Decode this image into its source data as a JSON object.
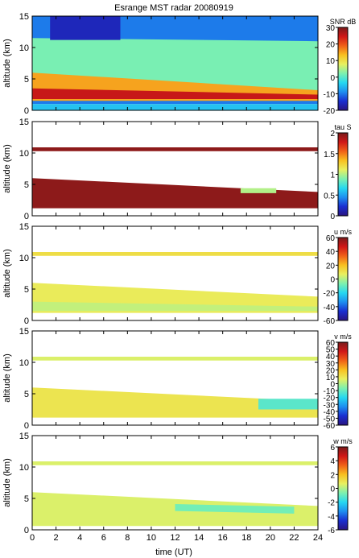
{
  "figure": {
    "title": "Esrange MST radar 20080919",
    "xlabel": "time (UT)",
    "x_ticks": [
      0,
      2,
      4,
      6,
      8,
      10,
      12,
      14,
      16,
      18,
      20,
      22,
      24
    ],
    "xlim": [
      0,
      24
    ]
  },
  "colors": {
    "colormap": [
      "#2a1480",
      "#1a2ed0",
      "#1e8ef0",
      "#26d8f0",
      "#7cf0b0",
      "#e8f060",
      "#f8c020",
      "#f06018",
      "#d01818",
      "#7a1a1a"
    ]
  },
  "chart_data": [
    {
      "type": "heatmap",
      "panel": "snr",
      "ylabel": "altitude (km)",
      "ylim": [
        0,
        15
      ],
      "y_ticks": [
        0,
        5,
        10,
        15
      ],
      "colorbar": {
        "label": "SNR dB",
        "range": [
          -20,
          30
        ],
        "ticks": [
          -20,
          -10,
          0,
          10,
          20,
          30
        ]
      },
      "layers": [
        {
          "from_t": 0,
          "to_t": 24,
          "alt_lo": [
            1.0,
            1.0
          ],
          "alt_hi": [
            15,
            15
          ],
          "value": -10
        },
        {
          "from_t": 0,
          "to_t": 24,
          "alt_lo": [
            5.5,
            1.5
          ],
          "alt_hi": [
            11.5,
            11.0
          ],
          "value": 2
        },
        {
          "from_t": 0,
          "to_t": 24,
          "alt_lo": [
            1.5,
            1.5
          ],
          "alt_hi": [
            6.0,
            3.2
          ],
          "value": 15
        },
        {
          "from_t": 0,
          "to_t": 24,
          "alt_lo": [
            1.8,
            1.8
          ],
          "alt_hi": [
            3.5,
            2.5
          ],
          "value": 25
        },
        {
          "from_t": 0,
          "to_t": 24,
          "alt_lo": [
            0,
            0
          ],
          "alt_hi": [
            1.0,
            1.0
          ],
          "value": -5
        },
        {
          "from_t": 1.5,
          "to_t": 7.4,
          "alt_lo": [
            11.2,
            11.2
          ],
          "alt_hi": [
            15,
            15
          ],
          "value": -16
        }
      ]
    },
    {
      "type": "heatmap",
      "panel": "tau",
      "ylabel": "altitude (km)",
      "ylim": [
        0,
        15
      ],
      "y_ticks": [
        0,
        5,
        10,
        15
      ],
      "colorbar": {
        "label": "tau S",
        "range": [
          0,
          2
        ],
        "ticks": [
          0,
          0.5,
          1,
          1.5,
          2
        ]
      },
      "layers": [
        {
          "from_t": 0,
          "to_t": 24,
          "alt_lo": [
            1.2,
            1.2
          ],
          "alt_hi": [
            6.0,
            3.8
          ],
          "value": 1.95
        },
        {
          "from_t": 0,
          "to_t": 24,
          "alt_lo": [
            10.3,
            10.3
          ],
          "alt_hi": [
            10.9,
            10.9
          ],
          "value": 1.95
        },
        {
          "from_t": 17.5,
          "to_t": 20.5,
          "alt_lo": [
            3.6,
            3.6
          ],
          "alt_hi": [
            4.4,
            4.4
          ],
          "value": 1.0
        }
      ]
    },
    {
      "type": "heatmap",
      "panel": "u",
      "ylabel": "altitude (km)",
      "ylim": [
        0,
        15
      ],
      "y_ticks": [
        0,
        5,
        10,
        15
      ],
      "colorbar": {
        "label": "u m/s",
        "range": [
          -60,
          60
        ],
        "ticks": [
          -60,
          -40,
          -20,
          0,
          20,
          40,
          60
        ]
      },
      "layers": [
        {
          "from_t": 0,
          "to_t": 24,
          "alt_lo": [
            1.2,
            1.2
          ],
          "alt_hi": [
            6.0,
            3.8
          ],
          "value": 8
        },
        {
          "from_t": 0,
          "to_t": 24,
          "alt_lo": [
            10.3,
            10.3
          ],
          "alt_hi": [
            10.9,
            10.9
          ],
          "value": 12
        },
        {
          "from_t": 0,
          "to_t": 24,
          "alt_lo": [
            1.5,
            1.5
          ],
          "alt_hi": [
            3.0,
            2.2
          ],
          "value": 2
        }
      ]
    },
    {
      "type": "heatmap",
      "panel": "v",
      "ylabel": "altitude (km)",
      "ylim": [
        0,
        15
      ],
      "y_ticks": [
        0,
        5,
        10,
        15
      ],
      "colorbar": {
        "label": "v m/s",
        "range": [
          -60,
          60
        ],
        "ticks": [
          -60,
          -50,
          -40,
          -30,
          -20,
          -10,
          0,
          10,
          20,
          30,
          40,
          50,
          60
        ]
      },
      "layers": [
        {
          "from_t": 0,
          "to_t": 24,
          "alt_lo": [
            1.2,
            1.2
          ],
          "alt_hi": [
            6.0,
            3.8
          ],
          "value": 10
        },
        {
          "from_t": 0,
          "to_t": 24,
          "alt_lo": [
            10.3,
            10.3
          ],
          "alt_hi": [
            10.9,
            10.9
          ],
          "value": 5
        },
        {
          "from_t": 19,
          "to_t": 24,
          "alt_lo": [
            2.5,
            2.5
          ],
          "alt_hi": [
            4.2,
            4.2
          ],
          "value": -12
        }
      ]
    },
    {
      "type": "heatmap",
      "panel": "w",
      "ylabel": "altitude (km)",
      "ylim": [
        0,
        15
      ],
      "y_ticks": [
        0,
        5,
        10,
        15
      ],
      "colorbar": {
        "label": "w m/s",
        "range": [
          -6,
          6
        ],
        "ticks": [
          -6,
          -4,
          -2,
          0,
          2,
          4,
          6
        ]
      },
      "layers": [
        {
          "from_t": 0,
          "to_t": 24,
          "alt_lo": [
            0.6,
            0.6
          ],
          "alt_hi": [
            6.0,
            3.8
          ],
          "value": 0.5
        },
        {
          "from_t": 0,
          "to_t": 24,
          "alt_lo": [
            10.3,
            10.3
          ],
          "alt_hi": [
            10.9,
            10.9
          ],
          "value": 0.5
        },
        {
          "from_t": 12,
          "to_t": 22,
          "alt_lo": [
            3.5,
            2.5
          ],
          "alt_hi": [
            4.6,
            3.6
          ],
          "value": -0.8
        }
      ]
    }
  ]
}
